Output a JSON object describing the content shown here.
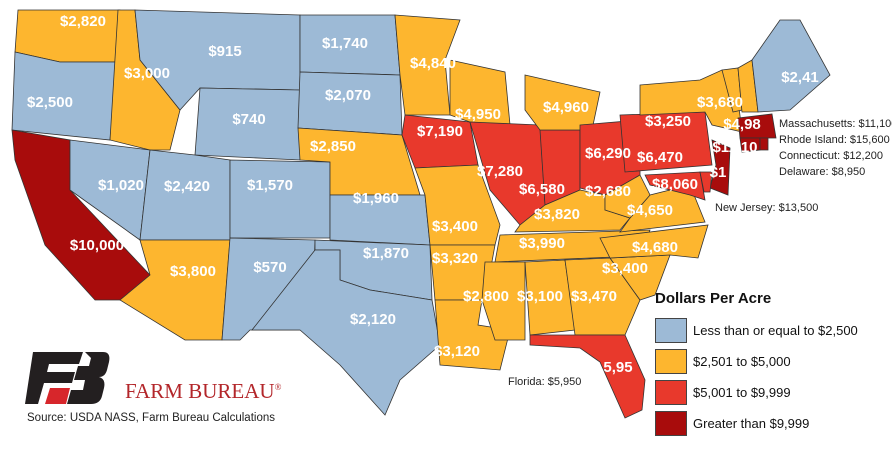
{
  "colors": {
    "low": "#9dbad6",
    "mid": "#fdb62f",
    "high": "#e8392c",
    "top": "#a80c0c"
  },
  "states": [
    {
      "code": "WA",
      "label": "$2,820",
      "cat": "mid"
    },
    {
      "code": "OR",
      "label": "$2,500",
      "cat": "low"
    },
    {
      "code": "CA",
      "label": "$10,000",
      "cat": "top"
    },
    {
      "code": "NV",
      "label": "$1,020",
      "cat": "low"
    },
    {
      "code": "ID",
      "label": "$3,000",
      "cat": "mid"
    },
    {
      "code": "MT",
      "label": "$915",
      "cat": "low"
    },
    {
      "code": "WY",
      "label": "$740",
      "cat": "low"
    },
    {
      "code": "UT",
      "label": "$2,420",
      "cat": "low"
    },
    {
      "code": "CO",
      "label": "$1,570",
      "cat": "low"
    },
    {
      "code": "AZ",
      "label": "$3,800",
      "cat": "mid"
    },
    {
      "code": "NM",
      "label": "$570",
      "cat": "low"
    },
    {
      "code": "ND",
      "label": "$1,740",
      "cat": "low"
    },
    {
      "code": "SD",
      "label": "$2,070",
      "cat": "low"
    },
    {
      "code": "NE",
      "label": "$2,850",
      "cat": "mid"
    },
    {
      "code": "KS",
      "label": "$1,960",
      "cat": "low"
    },
    {
      "code": "OK",
      "label": "$1,870",
      "cat": "low"
    },
    {
      "code": "TX",
      "label": "$2,120",
      "cat": "low"
    },
    {
      "code": "MN",
      "label": "$4,840",
      "cat": "mid"
    },
    {
      "code": "IA",
      "label": "$7,190",
      "cat": "high"
    },
    {
      "code": "MO",
      "label": "$3,400",
      "cat": "mid"
    },
    {
      "code": "AR",
      "label": "$3,320",
      "cat": "mid"
    },
    {
      "code": "LA",
      "label": "$3,120",
      "cat": "mid"
    },
    {
      "code": "WI",
      "label": "$4,950",
      "cat": "mid"
    },
    {
      "code": "IL",
      "label": "$7,280",
      "cat": "high"
    },
    {
      "code": "IN",
      "label": "$6,580",
      "cat": "high"
    },
    {
      "code": "MI",
      "label": "$4,960",
      "cat": "mid"
    },
    {
      "code": "OH",
      "label": "$6,290",
      "cat": "high"
    },
    {
      "code": "KY",
      "label": "$3,820",
      "cat": "mid"
    },
    {
      "code": "TN",
      "label": "$3,990",
      "cat": "mid"
    },
    {
      "code": "MS",
      "label": "$2,800",
      "cat": "mid"
    },
    {
      "code": "AL",
      "label": "$3,100",
      "cat": "mid"
    },
    {
      "code": "GA",
      "label": "$3,470",
      "cat": "mid"
    },
    {
      "code": "FL",
      "label": "5,95",
      "cat": "high"
    },
    {
      "code": "SC",
      "label": "$3,400",
      "cat": "mid"
    },
    {
      "code": "NC",
      "label": "$4,680",
      "cat": "mid"
    },
    {
      "code": "VA",
      "label": "$4,650",
      "cat": "mid"
    },
    {
      "code": "WV",
      "label": "$2,680",
      "cat": "mid"
    },
    {
      "code": "MD",
      "label": "$8,060",
      "cat": "high"
    },
    {
      "code": "PA",
      "label": "$6,470",
      "cat": "high"
    },
    {
      "code": "NY",
      "label": "$3,250",
      "cat": "mid"
    },
    {
      "code": "VT",
      "label": "$3,680",
      "cat": "mid"
    },
    {
      "code": "NH",
      "label": "$4,98",
      "cat": "mid"
    },
    {
      "code": "ME",
      "label": "$2,41",
      "cat": "low"
    },
    {
      "code": "MA",
      "label": "$11,10",
      "cat": "top"
    },
    {
      "code": "CT",
      "label": "",
      "cat": "top"
    },
    {
      "code": "RI",
      "label": "",
      "cat": "top"
    },
    {
      "code": "NJ",
      "label": "$1",
      "cat": "top"
    },
    {
      "code": "DE",
      "label": "",
      "cat": "high"
    }
  ],
  "callouts": {
    "massachusetts": "Massachusetts: $11,100",
    "rhode_island": "Rhode Island: $15,600",
    "connecticut": "Connecticut: $12,200",
    "delaware": "Delaware: $8,950",
    "new_jersey": "New Jersey: $13,500",
    "florida": "Florida: $5,950"
  },
  "legend": {
    "title": "Dollars Per Acre",
    "items": [
      {
        "label": "Less than or equal to $2,500",
        "cat": "low"
      },
      {
        "label": "$2,501 to $5,000",
        "cat": "mid"
      },
      {
        "label": "$5,001 to $9,999",
        "cat": "high"
      },
      {
        "label": "Greater than $9,999",
        "cat": "top"
      }
    ]
  },
  "brand": {
    "name": "FARM BUREAU",
    "registered": "®",
    "source": "Source: USDA NASS, Farm Bureau Calculations"
  }
}
